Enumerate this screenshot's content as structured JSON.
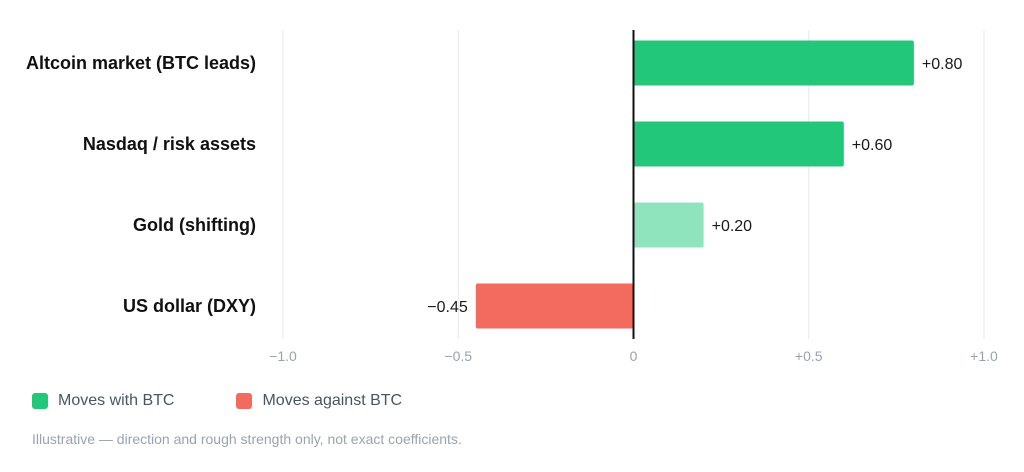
{
  "chart_data": {
    "type": "bar",
    "orientation": "horizontal",
    "categories": [
      "Altcoin market (BTC leads)",
      "Nasdaq / risk assets",
      "Gold (shifting)",
      "US dollar (DXY)"
    ],
    "values": [
      0.8,
      0.6,
      0.2,
      -0.45
    ],
    "value_labels": [
      "+0.80",
      "+0.60",
      "+0.20",
      "−0.45"
    ],
    "bar_colors": [
      "#22c77a",
      "#22c77a",
      "#8fe3bd",
      "#f26b5e"
    ],
    "xlim": [
      -1.0,
      1.0
    ],
    "xticks": [
      -1.0,
      -0.5,
      0,
      0.5,
      1.0
    ],
    "xtick_labels": [
      "−1.0",
      "−0.5",
      "0",
      "+0.5",
      "+1.0"
    ],
    "grid": true,
    "legend_position": "bottom-left",
    "title": "",
    "xlabel": "",
    "ylabel": ""
  },
  "legend": {
    "items": [
      {
        "label": "Moves with BTC",
        "color": "#22c77a"
      },
      {
        "label": "Moves against BTC",
        "color": "#f26b5e"
      }
    ]
  },
  "footnote": "Illustrative — direction and rough strength only, not exact coefficients."
}
